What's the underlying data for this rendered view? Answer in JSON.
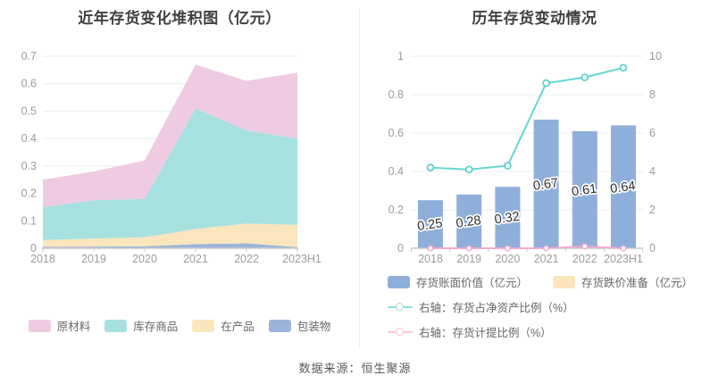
{
  "source": "数据来源：恒生聚源",
  "colors": {
    "grid": "#e8edf6",
    "axis_line": "#c9c9c9",
    "tick_text": "#9b9b9b",
    "title_text": "#404040",
    "legend_text": "#666666",
    "bar_label_text": "#2e2e2e"
  },
  "chart_data": [
    {
      "type": "area",
      "stacked": true,
      "title": "近年存货变化堆积图（亿元）",
      "categories": [
        "2018",
        "2019",
        "2020",
        "2021",
        "2022",
        "2023H1"
      ],
      "ylim": [
        0,
        0.7
      ],
      "ytick_labels": [
        "0",
        "0.1",
        "0.2",
        "0.3",
        "0.4",
        "0.5",
        "0.6",
        "0.7"
      ],
      "grid": true,
      "legend_position": "bottom",
      "series": [
        {
          "name": "包装物",
          "key": "packaging",
          "color": "#9cb4da",
          "values": [
            0.005,
            0.006,
            0.007,
            0.015,
            0.018,
            0.004
          ]
        },
        {
          "name": "在产品",
          "key": "work-in-progress",
          "color": "#fae5bd",
          "values": [
            0.025,
            0.029,
            0.033,
            0.055,
            0.072,
            0.081
          ]
        },
        {
          "name": "库存商品",
          "key": "stock-goods",
          "color": "#a7e1df",
          "values": [
            0.12,
            0.14,
            0.14,
            0.44,
            0.34,
            0.315
          ]
        },
        {
          "name": "原材料",
          "key": "raw-materials",
          "color": "#eecbe3",
          "values": [
            0.1,
            0.105,
            0.14,
            0.16,
            0.18,
            0.24
          ]
        }
      ],
      "legend_order": [
        "原材料",
        "库存商品",
        "在产品",
        "包装物"
      ]
    },
    {
      "type": "bar",
      "subtype": "bar+line-dual-axis",
      "title": "历年存货变动情况",
      "categories": [
        "2018",
        "2019",
        "2020",
        "2021",
        "2022",
        "2023H1"
      ],
      "left_ylim": [
        0,
        1
      ],
      "right_ylim": [
        0,
        10
      ],
      "left_ytick_labels": [
        "0",
        "0.2",
        "0.4",
        "0.6",
        "0.8",
        "1"
      ],
      "right_ytick_labels": [
        "0",
        "2",
        "4",
        "6",
        "8",
        "10"
      ],
      "grid": true,
      "legend_position": "bottom",
      "series": [
        {
          "name": "存货账面价值（亿元）",
          "key": "inventory-book-value",
          "type": "bar",
          "axis": "left",
          "color": "#8fafda",
          "values": [
            0.25,
            0.28,
            0.32,
            0.67,
            0.61,
            0.64
          ],
          "labels": [
            "0.25",
            "0.28",
            "0.32",
            "0.67",
            "0.61",
            "0.64"
          ]
        },
        {
          "name": "存货跌价准备（亿元）",
          "key": "inventory-write-down-reserve",
          "type": "bar",
          "axis": "left",
          "color": "#fae5bd",
          "values": [
            0,
            0,
            0,
            0,
            0,
            0
          ]
        },
        {
          "name": "右轴：存货占净资产比例（%）",
          "key": "inventory-to-net-assets-ratio",
          "type": "line",
          "axis": "right",
          "color": "#57d1cd",
          "values": [
            4.2,
            4.1,
            4.3,
            8.6,
            8.9,
            9.4
          ]
        },
        {
          "name": "右轴：存货计提比例（%）",
          "key": "inventory-provision-ratio",
          "type": "line",
          "axis": "right",
          "color": "#f2a6cf",
          "values": [
            0,
            0,
            0,
            0,
            0.1,
            0
          ]
        }
      ]
    }
  ]
}
